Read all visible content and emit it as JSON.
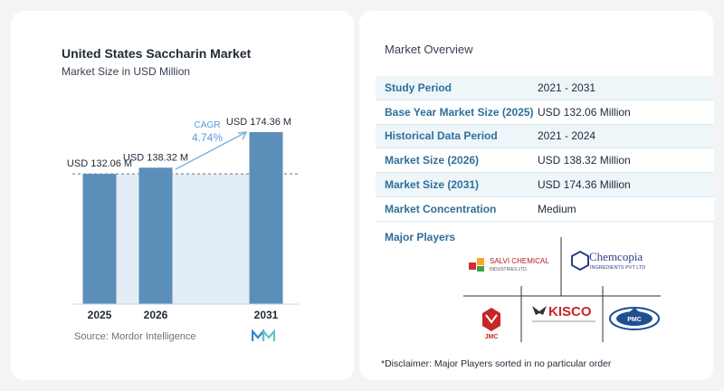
{
  "chart_data": {
    "type": "bar",
    "title": "United States Saccharin Market",
    "subtitle": "Market Size in USD Million",
    "categories": [
      "2025",
      "2026",
      "2031"
    ],
    "values": [
      132.06,
      138.32,
      174.36
    ],
    "value_labels": [
      "USD 132.06 M",
      "USD 138.32 M",
      "USD 174.36 M"
    ],
    "cagr_label": "CAGR",
    "cagr_value": "4.74%",
    "ylim": [
      0,
      180
    ],
    "grid": false,
    "colors": {
      "bar": "#5b8fb9",
      "shade": "#e3edf5",
      "arrow": "#7fb3d5",
      "cagr": "#5b9bd5"
    }
  },
  "source": "Source:  Mordor Intelligence",
  "overview": {
    "title": "Market Overview",
    "rows": [
      {
        "label": "Study Period",
        "value": "2021 - 2031"
      },
      {
        "label": "Base Year Market Size (2025)",
        "value": "USD 132.06 Million"
      },
      {
        "label": "Historical Data Period",
        "value": "2021 - 2024"
      },
      {
        "label": "Market Size (2026)",
        "value": "USD 138.32 Million"
      },
      {
        "label": "Market Size (2031)",
        "value": "USD 174.36 Million"
      },
      {
        "label": "Market Concentration",
        "value": "Medium"
      }
    ]
  },
  "players": {
    "label": "Major Players",
    "logos": {
      "salvi_name": "SALVI CHEMICAL",
      "salvi_sub": "INDUSTRIES LTD.",
      "chemcopia_name": "Chemcopia",
      "chemcopia_sub": "INGREDIENTS PVT LTD",
      "kisco_name": "KISCO",
      "jmc_name": "JMC",
      "pmc_name": "PMC"
    }
  },
  "disclaimer": "*Disclaimer: Major Players sorted in no particular order"
}
